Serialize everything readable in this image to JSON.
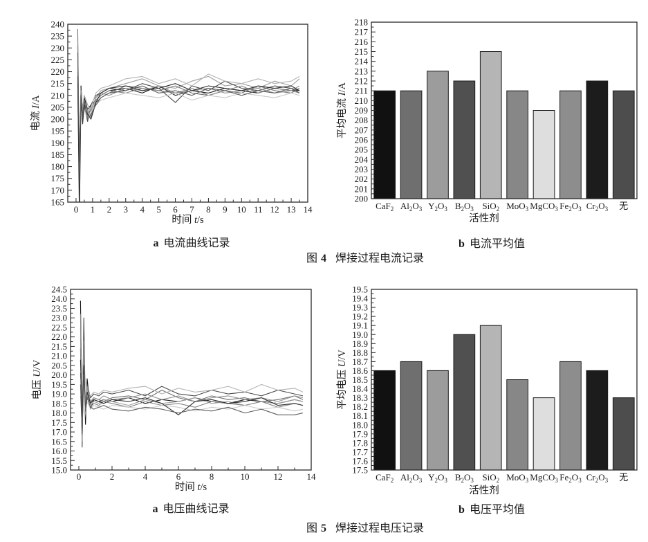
{
  "page": {
    "background": "#ffffff"
  },
  "figure4": {
    "panel_a": {
      "prefix": "a",
      "title": "电流曲线记录"
    },
    "panel_b": {
      "prefix": "b",
      "title": "电流平均值"
    },
    "caption": {
      "label": "图",
      "num": "4",
      "text": "焊接过程电流记录"
    }
  },
  "figure5": {
    "panel_a": {
      "prefix": "a",
      "title": "电压曲线记录"
    },
    "panel_b": {
      "prefix": "b",
      "title": "电压平均值"
    },
    "caption": {
      "label": "图",
      "num": "5",
      "text": "焊接过程电压记录"
    }
  },
  "chart_data": [
    {
      "id": "current-curves",
      "type": "line",
      "xlabel": "时间 *t*/s",
      "ylabel": "电流 *I*/A",
      "xlim": [
        -0.5,
        14
      ],
      "ylim": [
        165,
        240
      ],
      "xtick": {
        "major": 1,
        "minor": 0.5,
        "decimals": 0
      },
      "ytick": {
        "major": 5,
        "minor": 2.5,
        "decimals": 0
      },
      "grid": false,
      "legend": "none",
      "x": [
        0.1,
        0.2,
        0.3,
        0.4,
        0.5,
        0.7,
        0.9,
        1.2,
        1.5,
        2,
        3,
        4,
        5,
        6,
        7,
        8,
        9,
        10,
        11,
        12,
        13,
        13.5
      ],
      "series": [
        {
          "name": "CaF_2",
          "color": "#141414",
          "values": [
            231,
            168,
            214,
            202,
            209,
            204,
            206,
            208,
            210,
            212,
            213,
            211,
            214,
            210,
            212,
            211,
            213,
            212,
            211,
            213,
            212,
            212
          ]
        },
        {
          "name": "Al_2O_3",
          "color": "#707070",
          "values": [
            238,
            175,
            211,
            199,
            207,
            203,
            200,
            207,
            209,
            211,
            214,
            213,
            212,
            214,
            211,
            210,
            212,
            211,
            214,
            212,
            211,
            213
          ]
        },
        {
          "name": "Y_2O_3",
          "color": "#9e9e9e",
          "values": [
            225,
            180,
            208,
            205,
            210,
            206,
            203,
            209,
            212,
            213,
            215,
            217,
            214,
            213,
            216,
            218,
            214,
            215,
            213,
            216,
            214,
            217
          ]
        },
        {
          "name": "B_2O_3",
          "color": "#4a4a4a",
          "values": [
            215,
            170,
            213,
            201,
            205,
            199,
            206,
            210,
            211,
            213,
            212,
            215,
            213,
            207,
            214,
            212,
            216,
            213,
            212,
            214,
            213,
            212
          ]
        },
        {
          "name": "SiO_2",
          "color": "#b3b3b3",
          "values": [
            208,
            185,
            210,
            204,
            208,
            202,
            205,
            211,
            213,
            214,
            217,
            218,
            215,
            217,
            214,
            219,
            216,
            215,
            217,
            215,
            216,
            218
          ]
        },
        {
          "name": "MoO_3",
          "color": "#858585",
          "values": [
            220,
            172,
            207,
            200,
            206,
            204,
            201,
            208,
            210,
            212,
            211,
            213,
            212,
            211,
            213,
            210,
            212,
            214,
            211,
            213,
            212,
            211
          ]
        },
        {
          "name": "MgCO_3",
          "color": "#c9c9c9",
          "values": [
            205,
            190,
            206,
            202,
            204,
            200,
            203,
            206,
            208,
            209,
            211,
            210,
            209,
            211,
            208,
            210,
            209,
            211,
            210,
            209,
            211,
            210
          ]
        },
        {
          "name": "Fe_2O_3",
          "color": "#8f8f8f",
          "values": [
            233,
            178,
            212,
            203,
            207,
            201,
            204,
            209,
            211,
            210,
            213,
            212,
            214,
            211,
            212,
            213,
            211,
            212,
            213,
            211,
            212,
            214
          ]
        },
        {
          "name": "Cr_2O_3",
          "color": "#2e2e2e",
          "values": [
            218,
            158,
            209,
            198,
            206,
            202,
            200,
            207,
            211,
            213,
            214,
            212,
            213,
            215,
            212,
            214,
            213,
            212,
            214,
            213,
            214,
            212
          ]
        },
        {
          "name": "无",
          "color": "#5c5c5c",
          "values": [
            228,
            182,
            210,
            201,
            208,
            200,
            202,
            206,
            209,
            211,
            212,
            214,
            211,
            212,
            210,
            213,
            212,
            210,
            212,
            211,
            213,
            211
          ]
        }
      ]
    },
    {
      "id": "current-averages",
      "type": "bar",
      "xlabel": "活性剂",
      "ylabel": "平均电流 *I*/A",
      "ylim": [
        200,
        218
      ],
      "ytick": {
        "major": 1,
        "minor": 0.5,
        "decimals": 0
      },
      "grid": false,
      "legend": "none",
      "categories": [
        "CaF_2",
        "Al_2O_3",
        "Y_2O_3",
        "B_2O_3",
        "SiO_2",
        "MoO_3",
        "MgCO_3",
        "Fe_2O_3",
        "Cr_2O_3",
        "无"
      ],
      "values": [
        211,
        211,
        213,
        212,
        215,
        211,
        209,
        211,
        212,
        211
      ],
      "colors": [
        "#111111",
        "#6f6f6f",
        "#9c9c9c",
        "#505050",
        "#b5b5b5",
        "#878787",
        "#dedede",
        "#8d8d8d",
        "#1c1c1c",
        "#4d4d4d"
      ]
    },
    {
      "id": "voltage-curves",
      "type": "line",
      "xlabel": "时间 *t*/s",
      "ylabel": "电压 *U*/V",
      "xlim": [
        -0.5,
        14
      ],
      "ylim": [
        15.0,
        24.5
      ],
      "xtick": {
        "major": 2,
        "minor": 1,
        "decimals": 0
      },
      "ytick": {
        "major": 0.5,
        "minor": 0.25,
        "decimals": 1
      },
      "grid": false,
      "legend": "none",
      "x": [
        0.1,
        0.2,
        0.3,
        0.4,
        0.5,
        0.7,
        0.9,
        1.2,
        1.5,
        2,
        3,
        4,
        5,
        6,
        7,
        8,
        9,
        10,
        11,
        12,
        13,
        13.5
      ],
      "series": [
        {
          "name": "CaF_2",
          "color": "#141414",
          "values": [
            23.9,
            16.8,
            21.5,
            17.4,
            19.8,
            18.2,
            18.7,
            18.6,
            18.7,
            18.6,
            18.8,
            18.5,
            18.7,
            18.6,
            18.8,
            18.6,
            18.5,
            18.7,
            18.6,
            18.5,
            18.7,
            18.6
          ]
        },
        {
          "name": "Al_2O_3",
          "color": "#707070",
          "values": [
            20.1,
            17.2,
            22.3,
            18.0,
            19.3,
            18.5,
            18.8,
            18.7,
            18.6,
            18.8,
            18.9,
            18.7,
            19.2,
            18.8,
            18.6,
            18.9,
            18.7,
            18.8,
            18.6,
            18.7,
            18.9,
            18.7
          ]
        },
        {
          "name": "Y_2O_3",
          "color": "#9e9e9e",
          "values": [
            22.5,
            17.0,
            20.8,
            18.3,
            19.0,
            18.4,
            18.6,
            18.5,
            18.7,
            18.6,
            18.4,
            18.7,
            18.5,
            18.6,
            18.8,
            18.5,
            18.6,
            18.4,
            18.6,
            18.5,
            18.7,
            18.6
          ]
        },
        {
          "name": "B_2O_3",
          "color": "#4a4a4a",
          "values": [
            21.4,
            16.2,
            23.0,
            17.8,
            19.5,
            18.8,
            19.0,
            18.9,
            19.1,
            19.0,
            19.2,
            18.9,
            19.4,
            19.0,
            18.9,
            19.2,
            19.0,
            19.1,
            18.9,
            19.2,
            19.0,
            18.9
          ]
        },
        {
          "name": "SiO_2",
          "color": "#b3b3b3",
          "values": [
            19.8,
            17.6,
            21.0,
            18.5,
            19.2,
            18.9,
            19.1,
            19.0,
            19.2,
            19.1,
            19.3,
            19.4,
            19.0,
            19.3,
            19.1,
            19.2,
            19.4,
            19.1,
            19.5,
            19.2,
            19.3,
            19.1
          ]
        },
        {
          "name": "MoO_3",
          "color": "#858585",
          "values": [
            23.2,
            17.1,
            20.2,
            18.1,
            18.9,
            18.3,
            18.5,
            18.4,
            18.6,
            18.5,
            18.3,
            18.6,
            18.4,
            18.5,
            18.3,
            18.6,
            18.5,
            18.4,
            18.6,
            18.3,
            18.5,
            18.4
          ]
        },
        {
          "name": "MgCO_3",
          "color": "#c9c9c9",
          "values": [
            18.9,
            17.4,
            19.6,
            18.0,
            18.6,
            18.2,
            18.4,
            18.3,
            18.2,
            18.4,
            18.3,
            18.2,
            18.4,
            18.3,
            18.1,
            18.3,
            18.2,
            18.4,
            18.2,
            18.3,
            18.1,
            18.2
          ]
        },
        {
          "name": "Fe_2O_3",
          "color": "#8f8f8f",
          "values": [
            22.0,
            16.5,
            21.8,
            17.9,
            19.4,
            18.6,
            18.8,
            18.7,
            18.9,
            18.7,
            18.8,
            19.0,
            18.7,
            18.9,
            18.6,
            18.8,
            18.9,
            18.7,
            18.8,
            18.6,
            18.9,
            18.8
          ]
        },
        {
          "name": "Cr_2O_3",
          "color": "#2e2e2e",
          "values": [
            20.8,
            17.8,
            20.5,
            18.2,
            19.1,
            18.5,
            18.7,
            18.6,
            18.5,
            18.7,
            18.6,
            18.8,
            18.5,
            17.9,
            18.6,
            18.7,
            18.5,
            18.6,
            18.8,
            18.4,
            18.5,
            18.4
          ]
        },
        {
          "name": "无",
          "color": "#5c5c5c",
          "values": [
            19.5,
            16.9,
            20.0,
            18.1,
            18.8,
            18.3,
            18.2,
            18.3,
            18.4,
            18.2,
            18.1,
            18.3,
            18.2,
            18.0,
            18.2,
            18.1,
            18.3,
            18.0,
            18.2,
            17.9,
            17.9,
            18.0
          ]
        }
      ]
    },
    {
      "id": "voltage-averages",
      "type": "bar",
      "xlabel": "活性剂",
      "ylabel": "平均电压 *U*/V",
      "ylim": [
        17.5,
        19.5
      ],
      "ytick": {
        "major": 0.1,
        "minor": 0.05,
        "decimals": 1
      },
      "grid": false,
      "legend": "none",
      "categories": [
        "CaF_2",
        "Al_2O_3",
        "Y_2O_3",
        "B_2O_3",
        "SiO_2",
        "MoO_3",
        "MgCO_3",
        "Fe_2O_3",
        "Cr_2O_3",
        "无"
      ],
      "values": [
        18.6,
        18.7,
        18.6,
        19.0,
        19.1,
        18.5,
        18.3,
        18.7,
        18.6,
        18.3
      ],
      "colors": [
        "#111111",
        "#6f6f6f",
        "#9c9c9c",
        "#505050",
        "#b5b5b5",
        "#878787",
        "#dedede",
        "#8d8d8d",
        "#1c1c1c",
        "#4d4d4d"
      ]
    }
  ]
}
